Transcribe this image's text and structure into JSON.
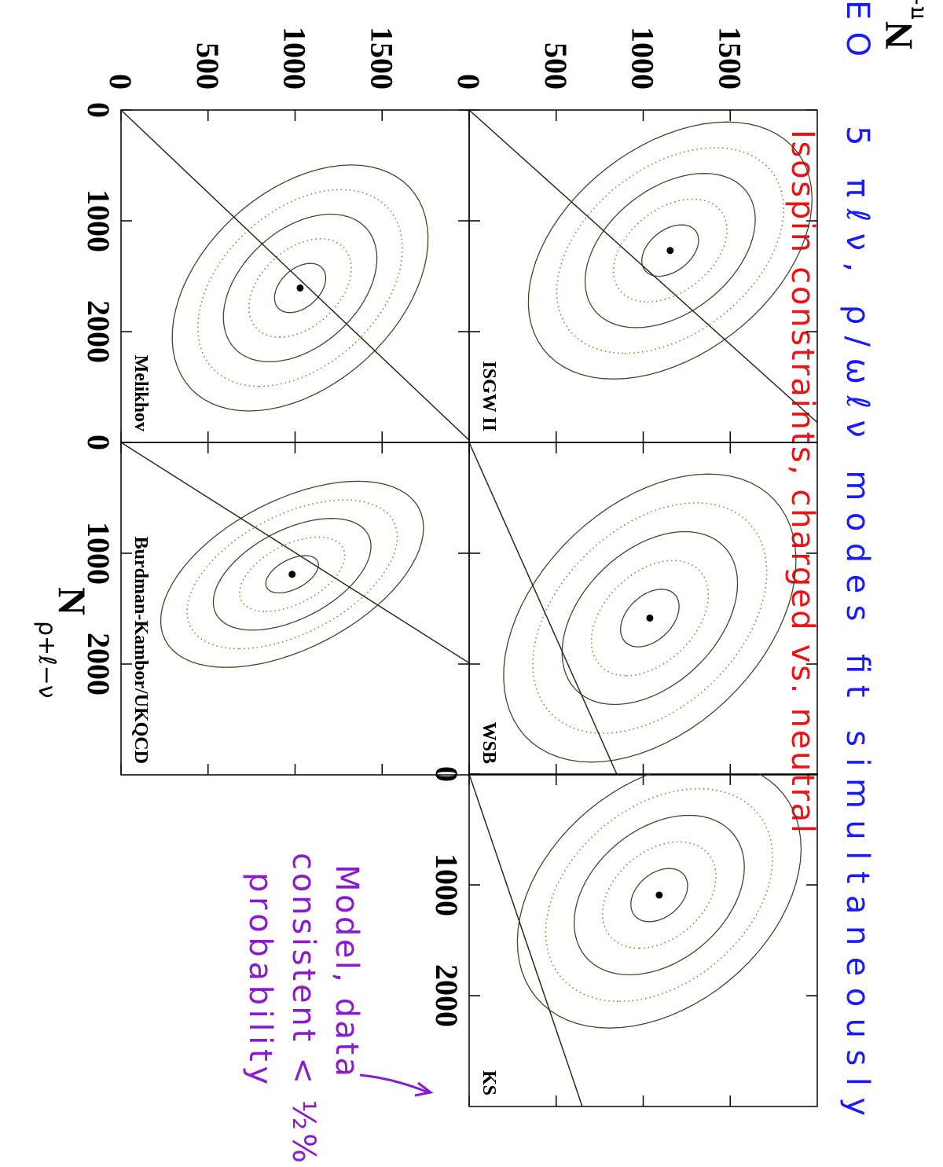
{
  "chart_data": {
    "type": "contour",
    "xlabel": {
      "main": "N",
      "sub": "ρ+ℓ−ν"
    },
    "ylabel": {
      "main": "N",
      "sub": "π+ℓ−ν"
    },
    "xlim": [
      0,
      3000
    ],
    "ylim": [
      0,
      2000
    ],
    "xticks": [
      0,
      1000,
      2000
    ],
    "yticks": [
      0,
      500,
      1000,
      1500
    ],
    "contour_levels": [
      1,
      2,
      3,
      4,
      5
    ],
    "contour_styles": [
      "solid",
      "dotted",
      "solid",
      "dotted",
      "solid"
    ],
    "panels": [
      {
        "title": "ISGW II",
        "best_fit": {
          "x": 1268,
          "y": 1155
        },
        "sigma": [
          232,
          163
        ],
        "rho": -0.4,
        "line_x": [
          0,
          2820
        ],
        "line_y": [
          0,
          2000
        ]
      },
      {
        "title": "WSB",
        "best_fit": {
          "x": 1585,
          "y": 1038
        },
        "sigma": [
          260,
          168
        ],
        "rho": -0.4,
        "line_x": [
          0,
          3000
        ],
        "line_y": [
          0,
          850
        ]
      },
      {
        "title": "KS",
        "best_fit": {
          "x": 1092,
          "y": 1092
        },
        "sigma": [
          240,
          163
        ],
        "rho": -0.35,
        "line_x": [
          0,
          3000
        ],
        "line_y": [
          0,
          650
        ]
      },
      {
        "title": "Melikhov",
        "best_fit": {
          "x": 1606,
          "y": 1029
        },
        "sigma": [
          222,
          147
        ],
        "rho": -0.4,
        "line_x": [
          0,
          2980
        ],
        "line_y": [
          0,
          2000
        ]
      },
      {
        "title": "Burdman-Kambor/UKQCD",
        "best_fit": {
          "x": 1190,
          "y": 983
        },
        "sigma": [
          168,
          151
        ],
        "rho": -0.5,
        "line_x": [
          0,
          1990
        ],
        "line_y": [
          0,
          2000
        ]
      }
    ]
  },
  "annotations": {
    "corner": "EO",
    "line1": "5 πℓν, ρ/ωℓν modes fit simultaneously",
    "line2": "Isospin constraints, charged vs. neutral",
    "note": [
      "Model, data",
      "consistent < ½%",
      "probability"
    ]
  }
}
